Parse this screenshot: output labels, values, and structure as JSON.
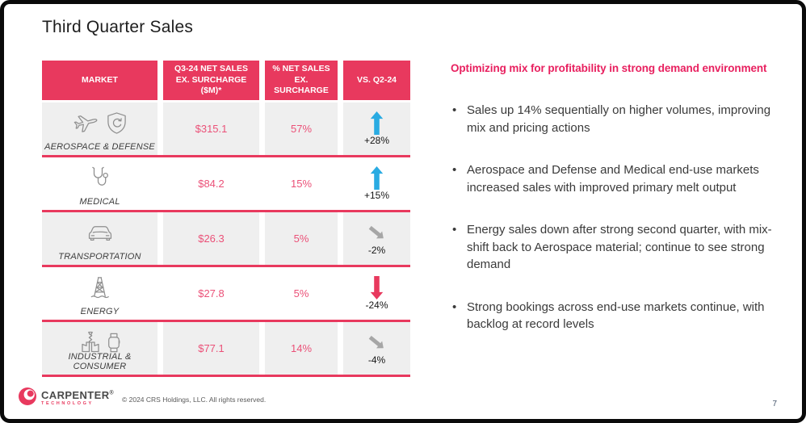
{
  "slide": {
    "title": "Third Quarter Sales",
    "page_number": "7",
    "copyright": "© 2024 CRS Holdings, LLC. All rights reserved.",
    "logo": {
      "brand": "CARPENTER",
      "reg_mark": "®",
      "division": "TECHNOLOGY"
    }
  },
  "table": {
    "headers": [
      "MARKET",
      "Q3-24 NET SALES EX. SURCHARGE ($M)*",
      "% NET SALES EX. SURCHARGE",
      "VS. Q2-24"
    ],
    "rows": [
      {
        "market": "AEROSPACE & DEFENSE",
        "icons": [
          "airplane-icon",
          "shield-icon"
        ],
        "net_sales": "$315.1",
        "pct_of_sales": "57%",
        "vs_q2": "+28%",
        "trend": "up"
      },
      {
        "market": "MEDICAL",
        "icons": [
          "stethoscope-icon"
        ],
        "net_sales": "$84.2",
        "pct_of_sales": "15%",
        "vs_q2": "+15%",
        "trend": "up"
      },
      {
        "market": "TRANSPORTATION",
        "icons": [
          "car-icon"
        ],
        "net_sales": "$26.3",
        "pct_of_sales": "5%",
        "vs_q2": "-2%",
        "trend": "down-slight"
      },
      {
        "market": "ENERGY",
        "icons": [
          "oil-derrick-icon"
        ],
        "net_sales": "$27.8",
        "pct_of_sales": "5%",
        "vs_q2": "-24%",
        "trend": "down"
      },
      {
        "market": "INDUSTRIAL & CONSUMER",
        "icons": [
          "drill-press-icon",
          "watch-icon"
        ],
        "net_sales": "$77.1",
        "pct_of_sales": "14%",
        "vs_q2": "-4%",
        "trend": "down-slight"
      }
    ]
  },
  "commentary": {
    "heading": "Optimizing mix for profitability in strong demand environment",
    "bullets": [
      "Sales up 14% sequentially on higher volumes, improving mix and pricing actions",
      "Aerospace and Defense and Medical end-use markets increased sales with improved primary melt output",
      "Energy sales down after strong second quarter, with mix-shift back to Aerospace material; continue to see strong demand",
      "Strong bookings across end-use markets continue, with backlog at record levels"
    ]
  },
  "colors": {
    "accent_pink": "#E8395E",
    "heading_pink": "#E8205F",
    "value_pink": "#EB5178",
    "row_shade": "#EFEFEF",
    "trend": {
      "up": "#29ABE2",
      "down": "#E8395E",
      "down-slight": "#A6A6A6"
    }
  }
}
